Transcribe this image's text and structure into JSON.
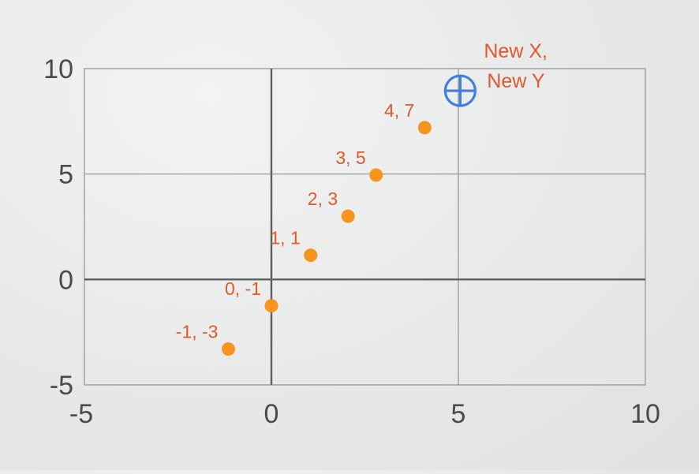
{
  "chart_data": {
    "type": "scatter",
    "title": "",
    "xlabel": "",
    "ylabel": "",
    "xlim": [
      -5,
      10
    ],
    "ylim": [
      -5,
      10
    ],
    "x_ticks": [
      "-5",
      "0",
      "5",
      "10"
    ],
    "y_ticks": [
      "10",
      "5",
      "0",
      "-5"
    ],
    "grid": true,
    "point_color": "#f7941d",
    "label_color": "#e4572e",
    "marker_color": "#3f7fe0",
    "points": [
      {
        "x": -1.15,
        "y": -3.3,
        "label": "-1, -3"
      },
      {
        "x": 0.0,
        "y": -1.25,
        "label": "0, -1"
      },
      {
        "x": 1.05,
        "y": 1.15,
        "label": "1, 1"
      },
      {
        "x": 2.05,
        "y": 3.0,
        "label": "2, 3"
      },
      {
        "x": 2.8,
        "y": 4.95,
        "label": "3, 5"
      },
      {
        "x": 4.1,
        "y": 7.2,
        "label": "4, 7"
      }
    ],
    "new_point": {
      "x": 5.05,
      "y": 8.95,
      "label_line1": "New X,",
      "label_line2": "New Y"
    }
  }
}
